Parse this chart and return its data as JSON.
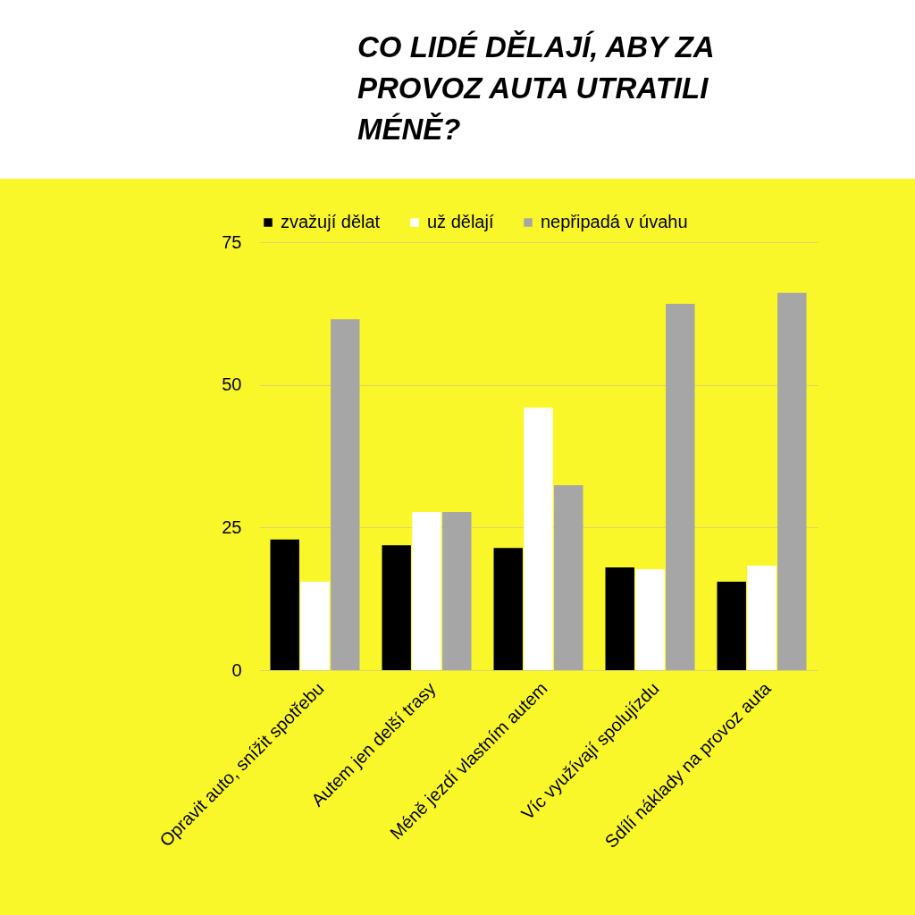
{
  "chart_data": {
    "type": "bar",
    "title": "CO LIDÉ DĚLAJÍ, ABY ZA PROVOZ AUTA UTRATILI MÉNĚ?",
    "categories": [
      "Opravit auto, snížit spotřebu",
      "Autem jen delší trasy",
      "Méně jezdí vlastním autem",
      "Víc využívají spolujízdu",
      "Sdílí náklady na provoz auta"
    ],
    "series": [
      {
        "name": "zvažují dělat",
        "color": "#000000",
        "values": [
          22.9,
          21.9,
          21.4,
          18.0,
          15.5
        ]
      },
      {
        "name": "už dělají",
        "color": "#ffffff",
        "values": [
          15.5,
          27.7,
          46.0,
          17.7,
          18.3
        ]
      },
      {
        "name": "nepřipadá v úvahu",
        "color": "#a6a6a6",
        "values": [
          61.5,
          27.7,
          32.4,
          64.2,
          66.1
        ]
      }
    ],
    "ylim": [
      0,
      75
    ],
    "yticks": [
      0,
      25,
      50,
      75
    ],
    "grid": "y",
    "legend": "top"
  }
}
